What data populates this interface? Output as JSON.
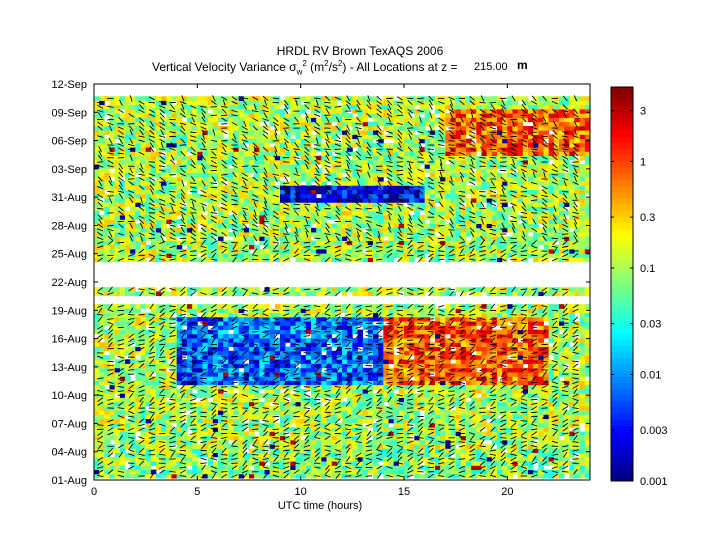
{
  "chart_data": {
    "type": "heatmap",
    "title_line1": "HRDL RV Brown TexAQS 2006",
    "title_line2_prefix": "Vertical Velocity Variance σ",
    "title_line2_sub": "w",
    "title_line2_sup": "2",
    "title_line2_mid": " (m",
    "title_line2_sup2": "2",
    "title_line2_suffix": "/s",
    "title_line2_sup3": "2",
    "title_line2_tail": ") - All Locations at z =",
    "z_value": "215.00",
    "z_unit": "m",
    "xlabel": "UTC time (hours)",
    "xlim": [
      0,
      24
    ],
    "x_ticks": [
      "0",
      "5",
      "10",
      "15",
      "20"
    ],
    "x_tick_values": [
      0,
      5,
      10,
      15,
      20
    ],
    "y_ticks": [
      "01-Aug",
      "04-Aug",
      "07-Aug",
      "10-Aug",
      "13-Aug",
      "16-Aug",
      "19-Aug",
      "22-Aug",
      "25-Aug",
      "28-Aug",
      "31-Aug",
      "03-Sep",
      "06-Sep",
      "09-Sep",
      "12-Sep"
    ],
    "ylim_days": [
      0,
      42
    ],
    "colorbar": {
      "scale": "log",
      "range": [
        0.001,
        5
      ],
      "tick_labels": [
        "0.001",
        "0.003",
        "0.01",
        "0.03",
        "0.1",
        "0.3",
        "1",
        "3"
      ],
      "tick_values": [
        0.001,
        0.003,
        0.01,
        0.03,
        0.1,
        0.3,
        1,
        3
      ]
    },
    "data_gaps_days": [
      [
        20.3,
        22.7
      ],
      [
        18.6,
        19.3
      ]
    ],
    "regimes": [
      {
        "days": [
          0,
          3
        ],
        "hours": [
          0,
          24
        ],
        "level": "medium"
      },
      {
        "days": [
          10,
          17
        ],
        "hours": [
          4,
          14
        ],
        "level": "low"
      },
      {
        "days": [
          10,
          17
        ],
        "hours": [
          14,
          22
        ],
        "level": "high"
      },
      {
        "days": [
          29,
          31
        ],
        "hours": [
          9,
          16
        ],
        "level": "very-low"
      },
      {
        "days": [
          34,
          39
        ],
        "hours": [
          17,
          24
        ],
        "level": "high"
      }
    ]
  }
}
